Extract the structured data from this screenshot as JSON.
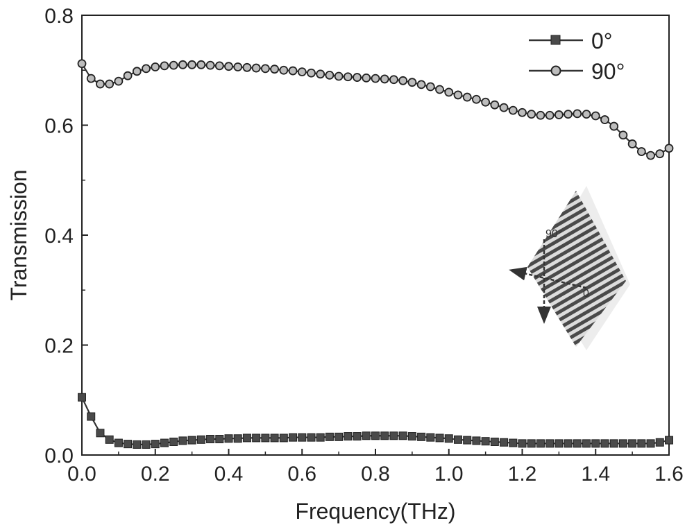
{
  "chart_data": {
    "type": "line",
    "xlabel": "Frequency(THz)",
    "ylabel": "Transmission",
    "xlim": [
      0.0,
      1.6
    ],
    "ylim": [
      0.0,
      0.8
    ],
    "xticks": [
      "0.0",
      "0.2",
      "0.4",
      "0.6",
      "0.8",
      "1.0",
      "1.2",
      "1.4",
      "1.6"
    ],
    "yticks": [
      "0.0",
      "0.2",
      "0.4",
      "0.6",
      "0.8"
    ],
    "grid": false,
    "legend_position": "top-right",
    "x": [
      0.0,
      0.025,
      0.05,
      0.075,
      0.1,
      0.125,
      0.15,
      0.175,
      0.2,
      0.225,
      0.25,
      0.275,
      0.3,
      0.325,
      0.35,
      0.375,
      0.4,
      0.425,
      0.45,
      0.475,
      0.5,
      0.525,
      0.55,
      0.575,
      0.6,
      0.625,
      0.65,
      0.675,
      0.7,
      0.725,
      0.75,
      0.775,
      0.8,
      0.825,
      0.85,
      0.875,
      0.9,
      0.925,
      0.95,
      0.975,
      1.0,
      1.025,
      1.05,
      1.075,
      1.1,
      1.125,
      1.15,
      1.175,
      1.2,
      1.225,
      1.25,
      1.275,
      1.3,
      1.325,
      1.35,
      1.375,
      1.4,
      1.425,
      1.45,
      1.475,
      1.5,
      1.525,
      1.55,
      1.575,
      1.6
    ],
    "series": [
      {
        "name": "0°",
        "marker": "square",
        "values": [
          0.105,
          0.07,
          0.04,
          0.028,
          0.022,
          0.02,
          0.019,
          0.019,
          0.02,
          0.022,
          0.024,
          0.026,
          0.027,
          0.028,
          0.029,
          0.029,
          0.03,
          0.03,
          0.031,
          0.031,
          0.031,
          0.031,
          0.031,
          0.032,
          0.032,
          0.032,
          0.032,
          0.033,
          0.033,
          0.034,
          0.034,
          0.035,
          0.035,
          0.035,
          0.035,
          0.035,
          0.034,
          0.033,
          0.032,
          0.031,
          0.03,
          0.028,
          0.027,
          0.026,
          0.025,
          0.024,
          0.023,
          0.022,
          0.021,
          0.021,
          0.021,
          0.021,
          0.021,
          0.021,
          0.021,
          0.021,
          0.021,
          0.021,
          0.021,
          0.021,
          0.021,
          0.021,
          0.021,
          0.023,
          0.027
        ]
      },
      {
        "name": "90°",
        "marker": "circle",
        "values": [
          0.712,
          0.685,
          0.675,
          0.675,
          0.68,
          0.69,
          0.698,
          0.703,
          0.706,
          0.708,
          0.709,
          0.71,
          0.71,
          0.71,
          0.709,
          0.708,
          0.707,
          0.706,
          0.705,
          0.704,
          0.703,
          0.702,
          0.7,
          0.699,
          0.697,
          0.695,
          0.693,
          0.691,
          0.689,
          0.688,
          0.687,
          0.686,
          0.685,
          0.684,
          0.683,
          0.681,
          0.678,
          0.674,
          0.67,
          0.665,
          0.66,
          0.655,
          0.651,
          0.647,
          0.642,
          0.637,
          0.632,
          0.627,
          0.623,
          0.62,
          0.618,
          0.618,
          0.619,
          0.62,
          0.621,
          0.62,
          0.617,
          0.61,
          0.598,
          0.582,
          0.566,
          0.552,
          0.545,
          0.548,
          0.558
        ]
      }
    ],
    "inset": {
      "labels": [
        "90°",
        "0"
      ]
    }
  }
}
